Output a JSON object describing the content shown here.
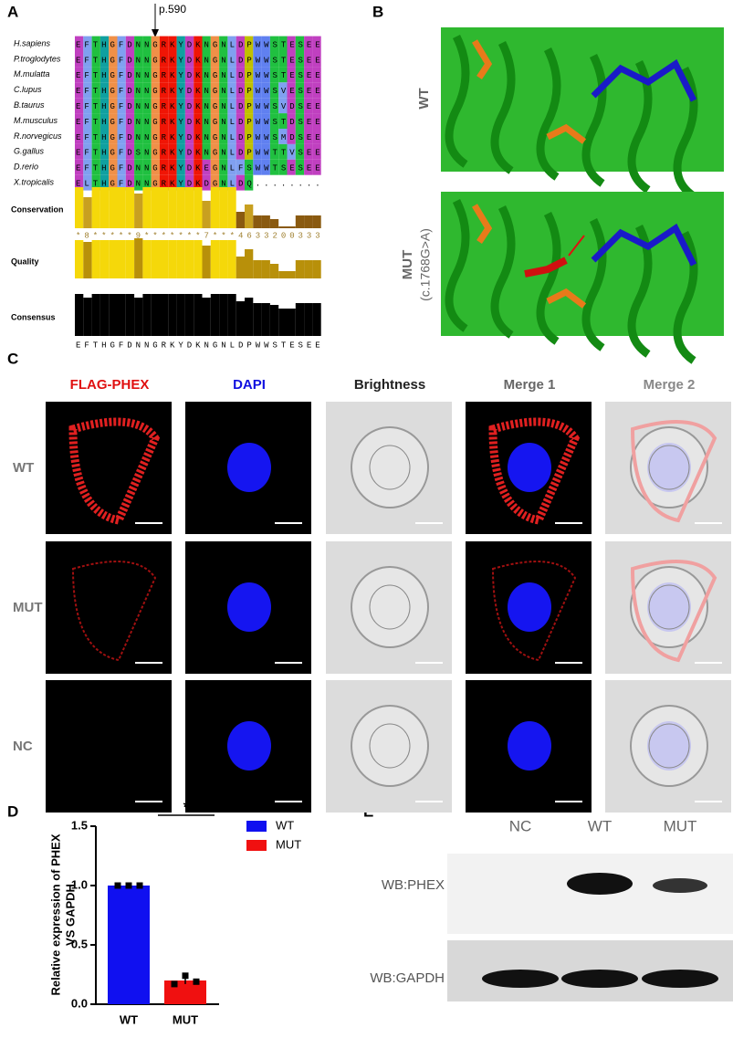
{
  "panels": {
    "A": {
      "label": "A",
      "marker": "p.590",
      "species": [
        "H.sapiens",
        "P.troglodytes",
        "M.mulatta",
        "C.lupus",
        "B.taurus",
        "M.musculus",
        "R.norvegicus",
        "G.gallus",
        "D.rerio",
        "X.tropicalis"
      ],
      "sequences": [
        "EFTHGFDNNGRKYDKNGNLDPWWSTESEE",
        "EFTHGFDNNGRKYDKNGNLDPWWSTESEE",
        "EFTHGFDNNGRKYDKNGNLDPWWSTESEE",
        "EFTHGFDNNGRKYDKNGNLDPWWSVESEE",
        "EFTHGFDNNGRKYDKNGNLDPWWSVDSEE",
        "EFTHGFDNNGRKYDKNGNLDPWWSTDSEE",
        "EFTHGFDNNGRKYDKNGNLDPWWSMDSEE",
        "EFTHGFDSNGRKYDKNGNLDPWWTTVSEE",
        "EFTHGFDNNGRKYDKEGNLFSWWTSESEE",
        "ELTHGFDNNGRKYDKDGNLDQ........"
      ],
      "tracks": [
        "Conservation",
        "Quality",
        "Consensus"
      ],
      "conservation_scores": "*8*****9*******7***4633200333",
      "consensus": "EFTHGFDNNGRKYDKNGNLDPWWSTESEE"
    },
    "B": {
      "label": "B",
      "rows": [
        "WT",
        "MUT"
      ],
      "mutation": "(c.1768G>A)"
    },
    "C": {
      "label": "C",
      "columns": [
        "FLAG-PHEX",
        "DAPI",
        "Brightness",
        "Merge 1",
        "Merge 2"
      ],
      "rows": [
        "WT",
        "MUT",
        "NC"
      ]
    },
    "E": {
      "label": "E",
      "lanes": [
        "NC",
        "WT",
        "MUT"
      ],
      "rows": [
        "WB:PHEX",
        "WB:GAPDH"
      ]
    }
  },
  "chart_data": {
    "type": "bar",
    "label": "D",
    "ylabel": [
      "Relative expression of PHEX",
      "VS GAPDH"
    ],
    "categories": [
      "WT",
      "MUT"
    ],
    "series": [
      {
        "name": "WT",
        "color": "#1010f0",
        "values": [
          1,
          null
        ],
        "points": [
          1,
          1,
          1
        ]
      },
      {
        "name": "MUT",
        "color": "#f01010",
        "values": [
          null,
          0.2
        ],
        "points": [
          0.17,
          0.24,
          0.19
        ],
        "error": 0.03
      }
    ],
    "ylim": [
      0,
      1.5
    ],
    "yticks": [
      {
        "value": 0,
        "label": "0.0"
      },
      0.5,
      {
        "value": 1,
        "label": "1.0"
      },
      1.5
    ],
    "significance": "*"
  }
}
